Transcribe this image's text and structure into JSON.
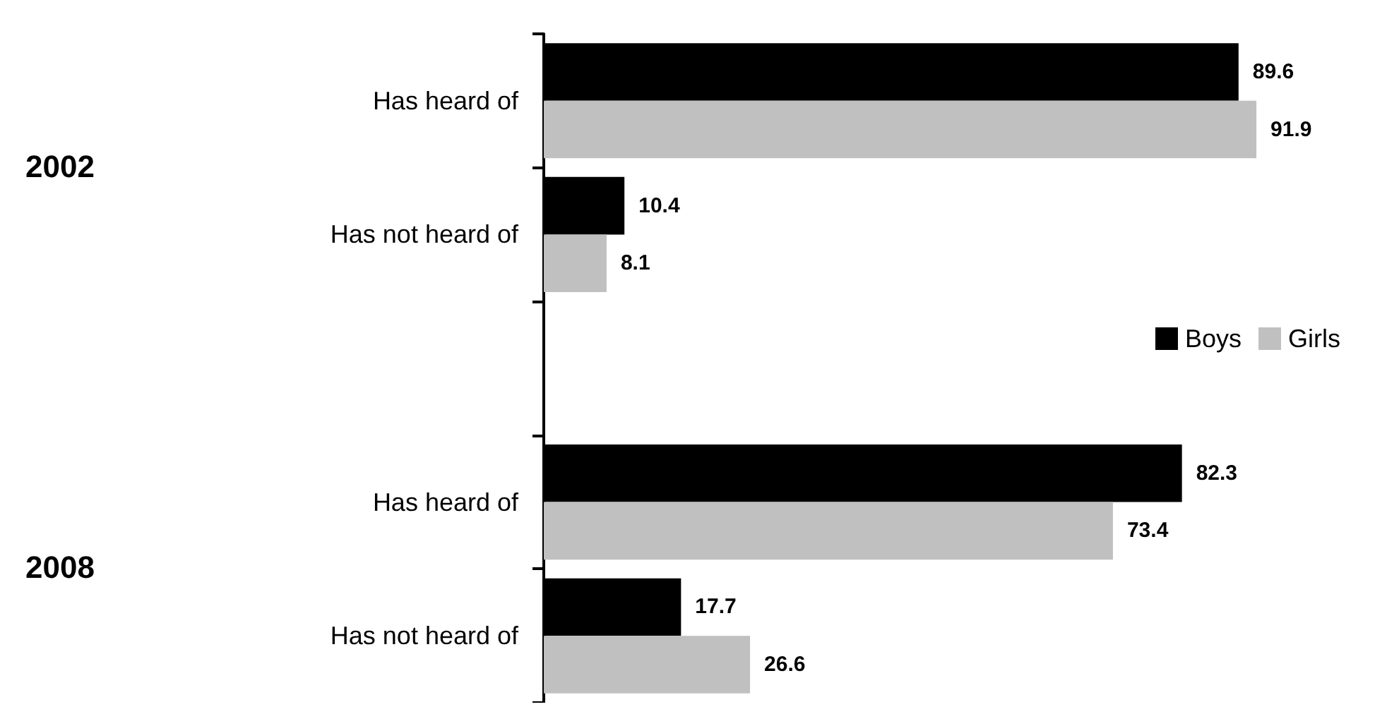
{
  "chart_data": {
    "type": "bar",
    "orientation": "horizontal",
    "categories": [
      "Has heard of",
      "Has not heard of",
      null,
      "Has heard of",
      "Has not heard of"
    ],
    "series": [
      {
        "name": "Boys",
        "color": "#000000",
        "values": [
          89.6,
          10.4,
          null,
          82.3,
          17.7
        ]
      },
      {
        "name": "Girls",
        "color": "#c0c0c0",
        "values": [
          91.9,
          8.1,
          null,
          73.4,
          26.6
        ]
      }
    ],
    "annotations": [
      "2002",
      "2008"
    ],
    "data_labels": true,
    "tick_labels": "y",
    "legend": "right",
    "grid": false
  }
}
